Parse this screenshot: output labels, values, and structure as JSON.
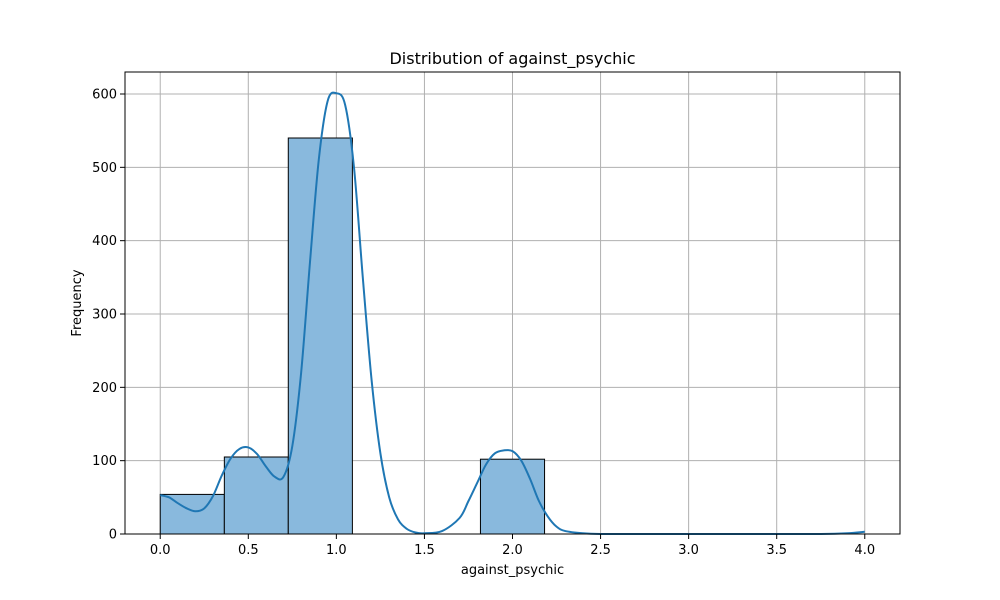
{
  "chart_data": {
    "type": "bar",
    "title": "Distribution of against_psychic",
    "xlabel": "against_psychic",
    "ylabel": "Frequency",
    "xlim": [
      -0.2,
      4.2
    ],
    "ylim": [
      0,
      630
    ],
    "grid": true,
    "x_ticks": [
      0.0,
      0.5,
      1.0,
      1.5,
      2.0,
      2.5,
      3.0,
      3.5,
      4.0
    ],
    "x_tick_labels": [
      "0.0",
      "0.5",
      "1.0",
      "1.5",
      "2.0",
      "2.5",
      "3.0",
      "3.5",
      "4.0"
    ],
    "y_ticks": [
      0,
      100,
      200,
      300,
      400,
      500,
      600
    ],
    "y_tick_labels": [
      "0",
      "100",
      "200",
      "300",
      "400",
      "500",
      "600"
    ],
    "bins": [
      {
        "x0": 0.0,
        "x1": 0.364,
        "count": 54
      },
      {
        "x0": 0.364,
        "x1": 0.727,
        "count": 105
      },
      {
        "x0": 0.727,
        "x1": 1.091,
        "count": 540
      },
      {
        "x0": 1.091,
        "x1": 1.455,
        "count": 0
      },
      {
        "x0": 1.455,
        "x1": 1.818,
        "count": 0
      },
      {
        "x0": 1.818,
        "x1": 2.182,
        "count": 102
      },
      {
        "x0": 2.182,
        "x1": 2.545,
        "count": 0
      },
      {
        "x0": 2.545,
        "x1": 2.909,
        "count": 0
      },
      {
        "x0": 2.909,
        "x1": 3.273,
        "count": 0
      },
      {
        "x0": 3.273,
        "x1": 3.636,
        "count": 0
      },
      {
        "x0": 3.636,
        "x1": 4.0,
        "count": 0
      }
    ],
    "kde": {
      "x": [
        0.0,
        0.05,
        0.1,
        0.15,
        0.2,
        0.25,
        0.3,
        0.35,
        0.4,
        0.45,
        0.5,
        0.55,
        0.6,
        0.65,
        0.7,
        0.75,
        0.8,
        0.85,
        0.9,
        0.95,
        1.0,
        1.05,
        1.1,
        1.15,
        1.2,
        1.25,
        1.3,
        1.35,
        1.4,
        1.45,
        1.5,
        1.6,
        1.7,
        1.75,
        1.8,
        1.85,
        1.9,
        1.95,
        2.0,
        2.05,
        2.1,
        2.15,
        2.2,
        2.25,
        2.3,
        2.4,
        2.5,
        2.75,
        3.0,
        3.25,
        3.5,
        3.75,
        3.9,
        4.0
      ],
      "y": [
        53,
        50,
        42,
        35,
        31,
        35,
        52,
        80,
        103,
        116,
        118,
        109,
        92,
        78,
        78,
        120,
        220,
        370,
        510,
        590,
        601,
        585,
        500,
        350,
        210,
        110,
        50,
        20,
        7,
        2,
        1,
        4,
        22,
        45,
        70,
        95,
        110,
        114,
        113,
        100,
        75,
        45,
        24,
        10,
        4,
        1,
        0,
        0,
        0,
        0,
        0,
        0,
        1,
        3
      ]
    },
    "colors": {
      "bar_fill": "#89b9dd",
      "bar_edge": "#000000",
      "kde_line": "#1f77b4",
      "grid": "#b0b0b0"
    }
  }
}
